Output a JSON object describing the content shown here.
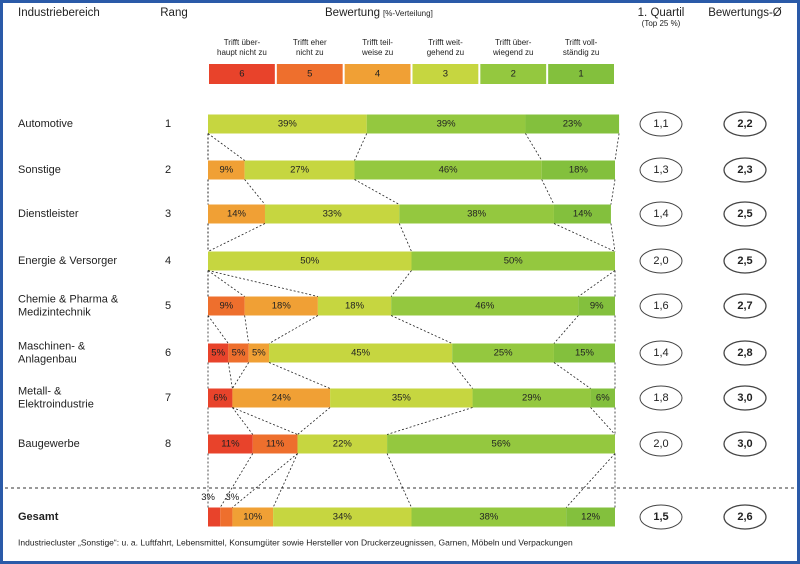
{
  "chart_data": {
    "type": "bar",
    "orientation": "horizontal",
    "stacked": true,
    "headers": {
      "industry": "Industriebereich",
      "rank": "Rang",
      "rating": "Bewertung",
      "rating_unit": "[%-Verteilung]",
      "quartile": "1. Quartil",
      "quartile_note": "(Top 25 %)",
      "average": "Bewertungs-Ø"
    },
    "categories": [
      "Automotive",
      "Sonstige",
      "Dienstleister",
      "Energie & Versorger",
      "Chemie & Pharma &\nMedizintechnik",
      "Maschinen- &\nAnlagenbau",
      "Metall- &\nElektroindustrie",
      "Baugewerbe",
      "Gesamt"
    ],
    "ranks": [
      1,
      2,
      3,
      4,
      5,
      6,
      7,
      8,
      null
    ],
    "quartile": [
      "1,1",
      "1,3",
      "1,4",
      "2,0",
      "1,6",
      "1,4",
      "1,8",
      "2,0",
      "1,5"
    ],
    "average": [
      "2,2",
      "2,3",
      "2,5",
      "2,5",
      "2,7",
      "2,8",
      "3,0",
      "3,0",
      "2,6"
    ],
    "xlim": [
      0,
      100
    ],
    "series": [
      {
        "name": "Trifft über-\nhaupt nicht zu",
        "label": "6",
        "color": "#e8432b",
        "text_color": "#ffffff",
        "values": [
          null,
          null,
          null,
          null,
          null,
          5,
          6,
          11,
          3
        ],
        "value_labels": [
          null,
          null,
          null,
          null,
          null,
          "5%",
          "6%",
          "11%",
          "3%"
        ]
      },
      {
        "name": "Trifft eher\nnicht zu",
        "label": "5",
        "color": "#ee6f2d",
        "text_color": "#ffffff",
        "values": [
          null,
          null,
          null,
          null,
          9,
          5,
          null,
          11,
          3
        ],
        "value_labels": [
          null,
          null,
          null,
          null,
          "9%",
          "5%",
          null,
          "11%",
          "3%"
        ]
      },
      {
        "name": "Trifft teil-\nweise zu",
        "label": "4",
        "color": "#f0a035",
        "text_color": "#222222",
        "values": [
          null,
          9,
          14,
          null,
          18,
          5,
          24,
          null,
          10
        ],
        "value_labels": [
          null,
          "9%",
          "14%",
          null,
          "18%",
          "5%",
          "24%",
          null,
          "10%"
        ]
      },
      {
        "name": "Trifft weit-\ngehend zu",
        "label": "3",
        "color": "#c6d640",
        "text_color": "#222222",
        "values": [
          39,
          27,
          33,
          50,
          18,
          45,
          35,
          22,
          34
        ],
        "value_labels": [
          "39%",
          "27%",
          "33%",
          "50%",
          "18%",
          "45%",
          "35%",
          "22%",
          "34%"
        ]
      },
      {
        "name": "Trifft über-\nwiegend zu",
        "label": "2",
        "color": "#94c83f",
        "text_color": "#222222",
        "values": [
          39,
          46,
          38,
          50,
          46,
          25,
          29,
          56,
          38
        ],
        "value_labels": [
          "39%",
          "46%",
          "38%",
          "50%",
          "46%",
          "25%",
          "29%",
          "56%",
          "38%"
        ]
      },
      {
        "name": "Trifft voll-\nständig zu",
        "label": "1",
        "color": "#83c03d",
        "text_color": "#222222",
        "values": [
          23,
          18,
          14,
          null,
          9,
          15,
          6,
          null,
          12
        ],
        "value_labels": [
          "23%",
          "18%",
          "14%",
          null,
          "9%",
          "15%",
          "6%",
          null,
          "12%"
        ]
      }
    ],
    "footnote": "Industriecluster „Sonstige“: u. a. Luftfahrt, Lebensmittel, Konsumgüter sowie Hersteller von Druckerzeugnissen, Garnen, Möbeln und Verpackungen"
  }
}
